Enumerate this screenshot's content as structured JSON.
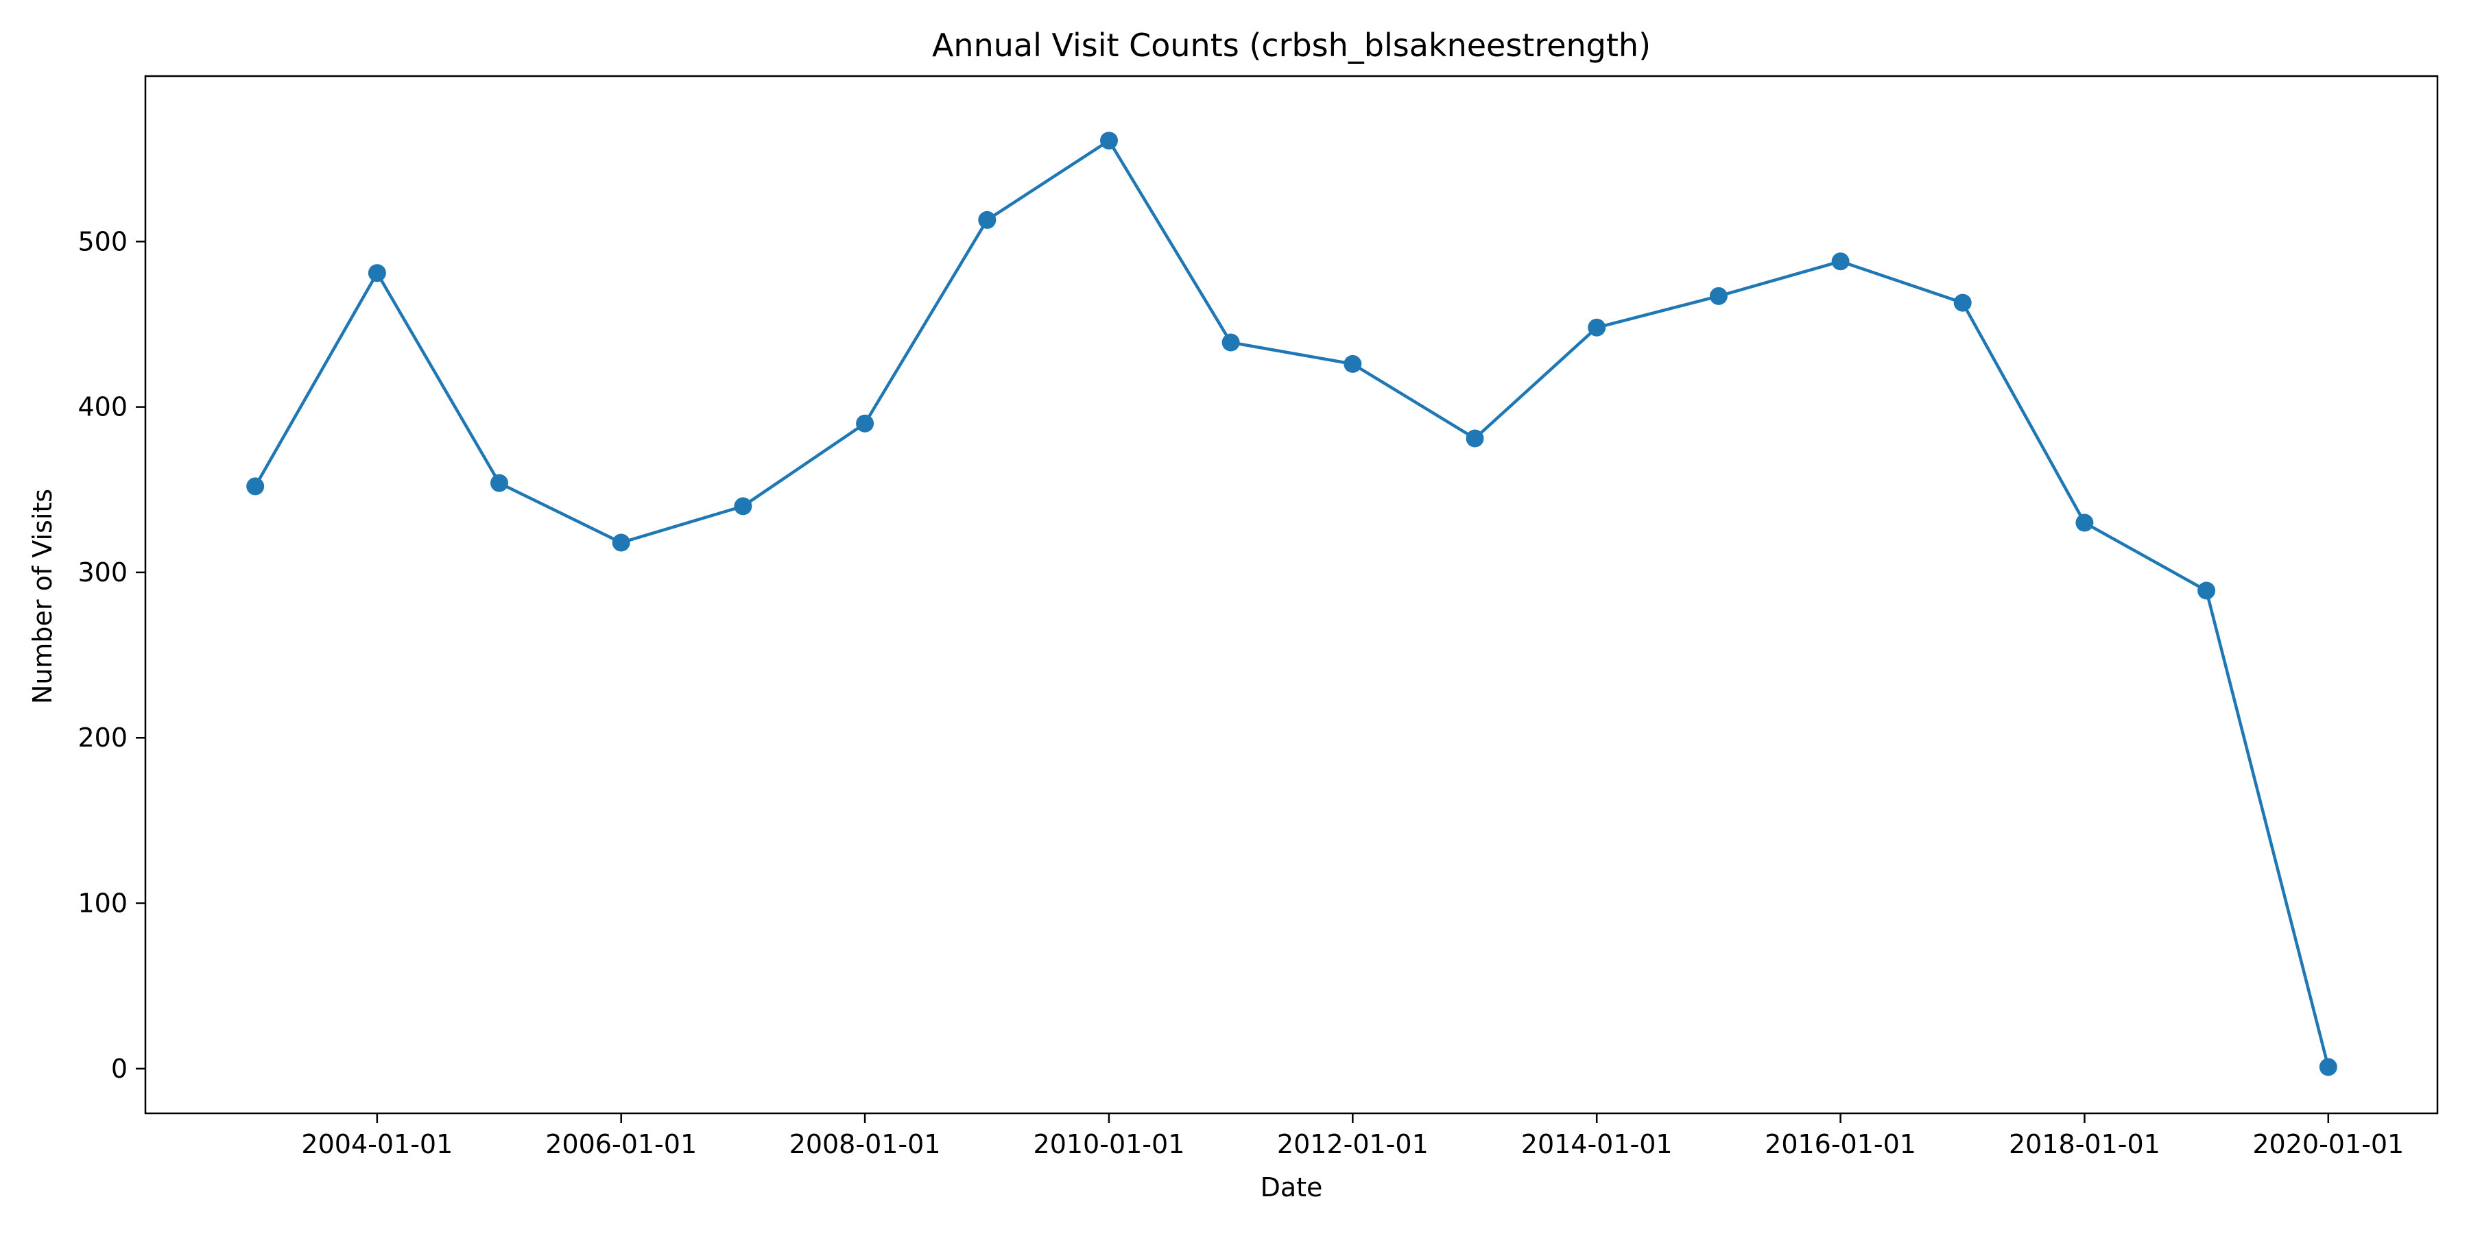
{
  "chart_data": {
    "type": "line",
    "title": "Annual Visit Counts (crbsh_blsakneestrength)",
    "xlabel": "Date",
    "ylabel": "Number of Visits",
    "x": [
      "2003-01-01",
      "2004-01-01",
      "2005-01-01",
      "2006-01-01",
      "2007-01-01",
      "2008-01-01",
      "2009-01-01",
      "2010-01-01",
      "2011-01-01",
      "2012-01-01",
      "2013-01-01",
      "2014-01-01",
      "2015-01-01",
      "2016-01-01",
      "2017-01-01",
      "2018-01-01",
      "2019-01-01",
      "2020-01-01"
    ],
    "series": [
      {
        "values": [
          352,
          481,
          354,
          318,
          340,
          390,
          513,
          561,
          439,
          426,
          381,
          448,
          467,
          488,
          463,
          330,
          289,
          1
        ],
        "color": "#1f77b4",
        "marker": "circle"
      }
    ],
    "xlim": [
      "2002-02-06",
      "2020-11-23"
    ],
    "ylim": [
      -27,
      600
    ],
    "x_ticks": [
      "2004-01-01",
      "2006-01-01",
      "2008-01-01",
      "2010-01-01",
      "2012-01-01",
      "2014-01-01",
      "2016-01-01",
      "2018-01-01",
      "2020-01-01"
    ],
    "y_ticks": [
      0,
      100,
      200,
      300,
      400,
      500
    ],
    "grid": false,
    "legend": "none"
  }
}
